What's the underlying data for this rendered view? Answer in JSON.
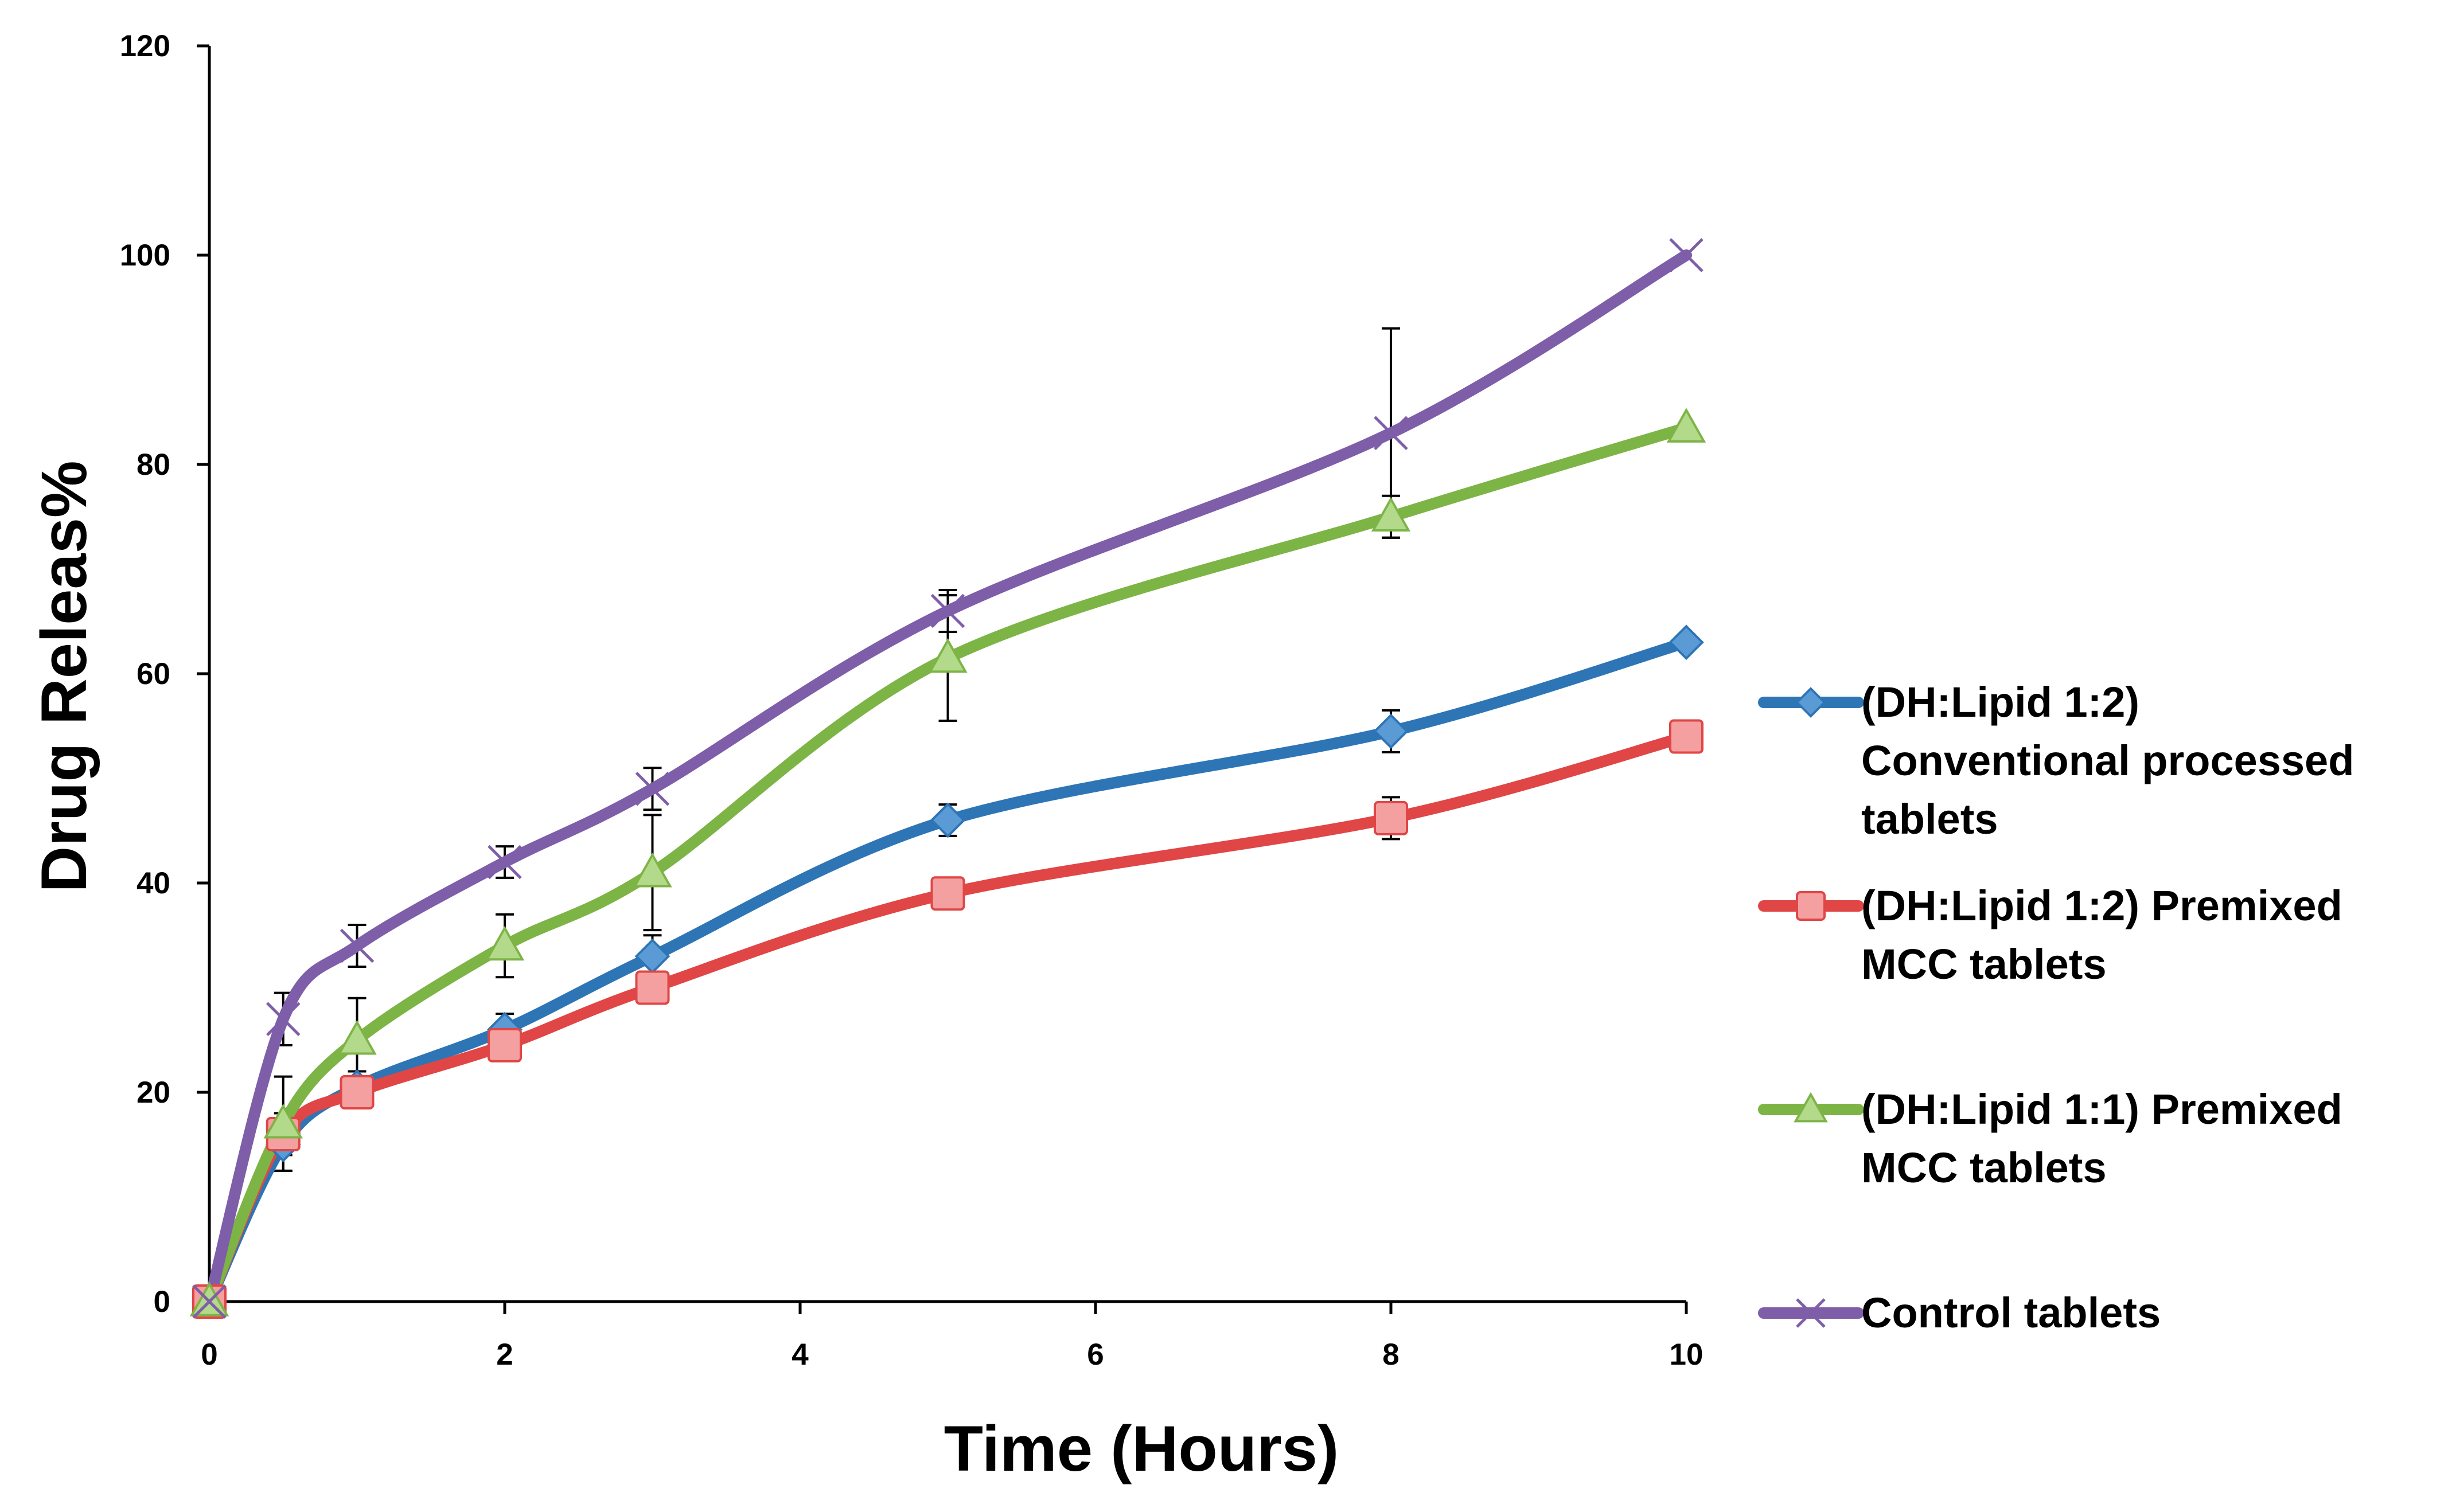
{
  "chart_data": {
    "type": "line",
    "title": "",
    "xlabel": "Time (Hours)",
    "ylabel": "Drug Releas%",
    "xlim": [
      0,
      10
    ],
    "ylim": [
      0,
      120
    ],
    "xticks": [
      0,
      2,
      4,
      6,
      8,
      10
    ],
    "yticks": [
      0,
      20,
      40,
      60,
      80,
      100,
      120
    ],
    "x": [
      0,
      0.5,
      1,
      2,
      3,
      5,
      8,
      10
    ],
    "legend_position": "right",
    "series": [
      {
        "name": "(DH:Lipid 1:2) Conventional processed tablets",
        "legend_lines": [
          "(DH:Lipid 1:2)",
          "Conventional processed",
          "tablets"
        ],
        "color": "#2E75B6",
        "marker": "diamond",
        "marker_fill": "#5B9BD5",
        "values": [
          0,
          15,
          20.5,
          26,
          33,
          46,
          54.5,
          63
        ],
        "errors": [
          0,
          2.5,
          1.5,
          1.5,
          2,
          1.5,
          2,
          0
        ]
      },
      {
        "name": "(DH:Lipid 1:2) Premixed MCC tablets",
        "legend_lines": [
          "(DH:Lipid 1:2) Premixed",
          "MCC tablets"
        ],
        "color": "#E04646",
        "marker": "square",
        "marker_fill": "#F4A0A0",
        "values": [
          0,
          16,
          20,
          24.5,
          30,
          39,
          46.2,
          54
        ],
        "errors": [
          0,
          2,
          1.5,
          1.5,
          1.5,
          1.5,
          2,
          0
        ]
      },
      {
        "name": "(DH:Lipid 1:1) Premixed MCC tablets",
        "legend_lines": [
          "(DH:Lipid 1:1) Premixed",
          "MCC tablets"
        ],
        "color": "#7DB446",
        "marker": "triangle",
        "marker_fill": "#B3D98A",
        "values": [
          0,
          17,
          25,
          34,
          41,
          61.5,
          75,
          83.5
        ],
        "errors": [
          0,
          4.5,
          4,
          3,
          5.5,
          6,
          2,
          0
        ]
      },
      {
        "name": "Control tablets",
        "legend_lines": [
          "Control tablets"
        ],
        "color": "#7E5EA8",
        "marker": "x",
        "marker_fill": "#7E5EA8",
        "values": [
          0,
          27,
          34,
          42,
          49,
          66,
          83,
          100
        ],
        "errors": [
          0,
          2.5,
          2,
          1.5,
          2,
          2,
          10,
          0
        ]
      }
    ]
  }
}
